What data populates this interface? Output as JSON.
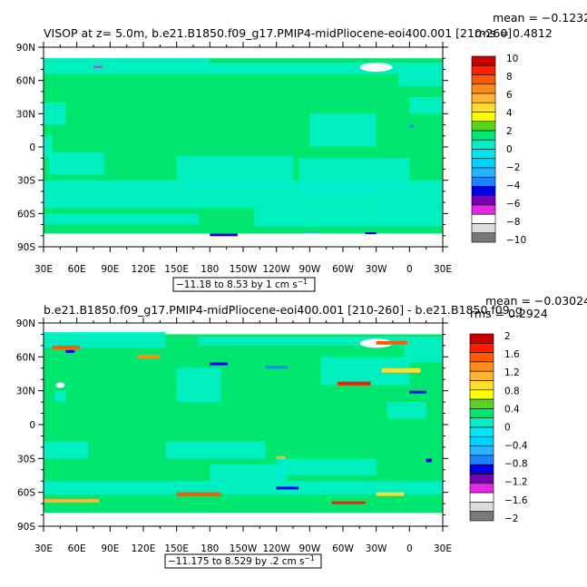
{
  "chart_data": [
    {
      "type": "heatmap",
      "title": "VISOP at z=    5.0m, b.e21.B1850.f09_g17.PMIP4-midPliocene-eoi400.001 [210-260]",
      "stats": {
        "mean": "mean = −0.1232",
        "rms": "rms = 0.4812"
      },
      "x_ticks": [
        "30E",
        "60E",
        "90E",
        "120E",
        "150E",
        "180",
        "150W",
        "120W",
        "90W",
        "60W",
        "30W",
        "0",
        "30E"
      ],
      "y_ticks": [
        "90N",
        "60N",
        "30N",
        "0",
        "30S",
        "60S",
        "90S"
      ],
      "range_box": "−11.18 to 8.53 by 1 cm s",
      "range_box_sup": "−1",
      "colorbar_labels": [
        "10",
        "8",
        "6",
        "4",
        "2",
        "0",
        "−2",
        "−4",
        "−6",
        "−8",
        "−10"
      ],
      "colorbar_colors": [
        "#c80000",
        "#ff1e00",
        "#ff5a00",
        "#ff8c14",
        "#ffb432",
        "#ffdc32",
        "#ffff00",
        "#5ad21e",
        "#00e66e",
        "#00f0c8",
        "#00e6f0",
        "#00d2ff",
        "#28b4ff",
        "#1e82ff",
        "#0000e6",
        "#7800b4",
        "#e628e6",
        "#ffffff",
        "#dcdcdc",
        "#787878"
      ]
    },
    {
      "type": "heatmap",
      "title": "b.e21.B1850.f09_g17.PMIP4-midPliocene-eoi400.001 [210-260] - b.e21.B1850.f09_g",
      "stats": {
        "mean": "mean = −0.03024",
        "rms": "rms = 0.2924"
      },
      "x_ticks": [
        "30E",
        "60E",
        "90E",
        "120E",
        "150E",
        "180",
        "150W",
        "120W",
        "90W",
        "60W",
        "30W",
        "0",
        "30E"
      ],
      "y_ticks": [
        "90N",
        "60N",
        "30N",
        "0",
        "30S",
        "60S",
        "90S"
      ],
      "range_box": "−11.175 to 8.529 by .2 cm s",
      "range_box_sup": "−1",
      "colorbar_labels": [
        "2",
        "1.6",
        "1.2",
        "0.8",
        "0.4",
        "0",
        "−0.4",
        "−0.8",
        "−1.2",
        "−1.6",
        "−2"
      ],
      "colorbar_colors": [
        "#c80000",
        "#ff1e00",
        "#ff5a00",
        "#ff8c14",
        "#ffb432",
        "#ffdc32",
        "#ffff00",
        "#5ad21e",
        "#00e66e",
        "#00f0c8",
        "#00e6f0",
        "#00d2ff",
        "#28b4ff",
        "#1e82ff",
        "#0000e6",
        "#7800b4",
        "#e628e6",
        "#ffffff",
        "#dcdcdc",
        "#787878"
      ]
    }
  ],
  "colors": {
    "background_field": "#00e66e",
    "negative_field": "#00f0c8",
    "land_mask": "#ffffff"
  }
}
